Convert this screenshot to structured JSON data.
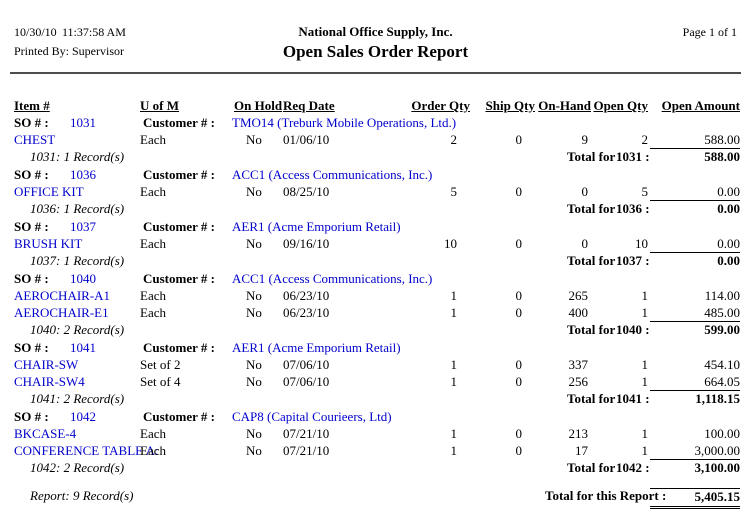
{
  "header": {
    "date": "10/30/10",
    "time": "11:37:58 AM",
    "printed_by": "Printed By: Supervisor",
    "company": "National Office Supply, Inc.",
    "report_title": "Open Sales Order Report",
    "page": "Page 1 of 1"
  },
  "columns": {
    "item": "Item #",
    "uofm": "U of M",
    "on_hold": "On Hold",
    "req_date": "Req Date",
    "order_qty": "Order Qty",
    "ship_qty": "Ship Qty",
    "on_hand": "On-Hand",
    "open_qty": "Open Qty",
    "open_amount": "Open Amount"
  },
  "labels": {
    "so": "SO # :",
    "customer": "Customer # :",
    "total_for": "Total for"
  },
  "groups": [
    {
      "so": "1031",
      "customer": "TMO14 (Treburk Mobile Operations, Ltd.)",
      "rows": [
        {
          "item": "CHEST",
          "uofm": "Each",
          "on_hold": "No",
          "req_date": "01/06/10",
          "order_qty": "2",
          "ship_qty": "0",
          "on_hand": "9",
          "open_qty": "2",
          "open_amount": "588.00"
        }
      ],
      "records": "1031: 1 Record(s)",
      "total_so": "1031 :",
      "total_amount": "588.00"
    },
    {
      "so": "1036",
      "customer": "ACC1 (Access Communications, Inc.)",
      "rows": [
        {
          "item": "OFFICE KIT",
          "uofm": "Each",
          "on_hold": "No",
          "req_date": "08/25/10",
          "order_qty": "5",
          "ship_qty": "0",
          "on_hand": "0",
          "open_qty": "5",
          "open_amount": "0.00"
        }
      ],
      "records": "1036: 1 Record(s)",
      "total_so": "1036 :",
      "total_amount": "0.00"
    },
    {
      "so": "1037",
      "customer": "AER1 (Acme Emporium Retail)",
      "rows": [
        {
          "item": "BRUSH KIT",
          "uofm": "Each",
          "on_hold": "No",
          "req_date": "09/16/10",
          "order_qty": "10",
          "ship_qty": "0",
          "on_hand": "0",
          "open_qty": "10",
          "open_amount": "0.00"
        }
      ],
      "records": "1037: 1 Record(s)",
      "total_so": "1037 :",
      "total_amount": "0.00"
    },
    {
      "so": "1040",
      "customer": "ACC1 (Access Communications, Inc.)",
      "rows": [
        {
          "item": "AEROCHAIR-A1",
          "uofm": "Each",
          "on_hold": "No",
          "req_date": "06/23/10",
          "order_qty": "1",
          "ship_qty": "0",
          "on_hand": "265",
          "open_qty": "1",
          "open_amount": "114.00"
        },
        {
          "item": "AEROCHAIR-E1",
          "uofm": "Each",
          "on_hold": "No",
          "req_date": "06/23/10",
          "order_qty": "1",
          "ship_qty": "0",
          "on_hand": "400",
          "open_qty": "1",
          "open_amount": "485.00"
        }
      ],
      "records": "1040: 2 Record(s)",
      "total_so": "1040 :",
      "total_amount": "599.00"
    },
    {
      "so": "1041",
      "customer": "AER1 (Acme Emporium Retail)",
      "rows": [
        {
          "item": "CHAIR-SW",
          "uofm": "Set of 2",
          "on_hold": "No",
          "req_date": "07/06/10",
          "order_qty": "1",
          "ship_qty": "0",
          "on_hand": "337",
          "open_qty": "1",
          "open_amount": "454.10"
        },
        {
          "item": "CHAIR-SW4",
          "uofm": "Set of 4",
          "on_hold": "No",
          "req_date": "07/06/10",
          "order_qty": "1",
          "ship_qty": "0",
          "on_hand": "256",
          "open_qty": "1",
          "open_amount": "664.05"
        }
      ],
      "records": "1041: 2 Record(s)",
      "total_so": "1041 :",
      "total_amount": "1,118.15"
    },
    {
      "so": "1042",
      "customer": "CAP8 (Capital Courieers, Ltd)",
      "rows": [
        {
          "item": "BKCASE-4",
          "uofm": "Each",
          "on_hold": "No",
          "req_date": "07/21/10",
          "order_qty": "1",
          "ship_qty": "0",
          "on_hand": "213",
          "open_qty": "1",
          "open_amount": "100.00"
        },
        {
          "item": "CONFERENCE TABLE A:",
          "uofm": "Each",
          "on_hold": "No",
          "req_date": "07/21/10",
          "order_qty": "1",
          "ship_qty": "0",
          "on_hand": "17",
          "open_qty": "1",
          "open_amount": "3,000.00"
        }
      ],
      "records": "1042: 2 Record(s)",
      "total_so": "1042 :",
      "total_amount": "3,100.00"
    }
  ],
  "footer": {
    "records": "Report: 9 Record(s)",
    "total_label": "Total for this Report :",
    "total_amount": "5,405.15"
  },
  "colors": {
    "link_blue": "#0000cc",
    "text": "#000000",
    "divider": "#4d4d4d"
  }
}
